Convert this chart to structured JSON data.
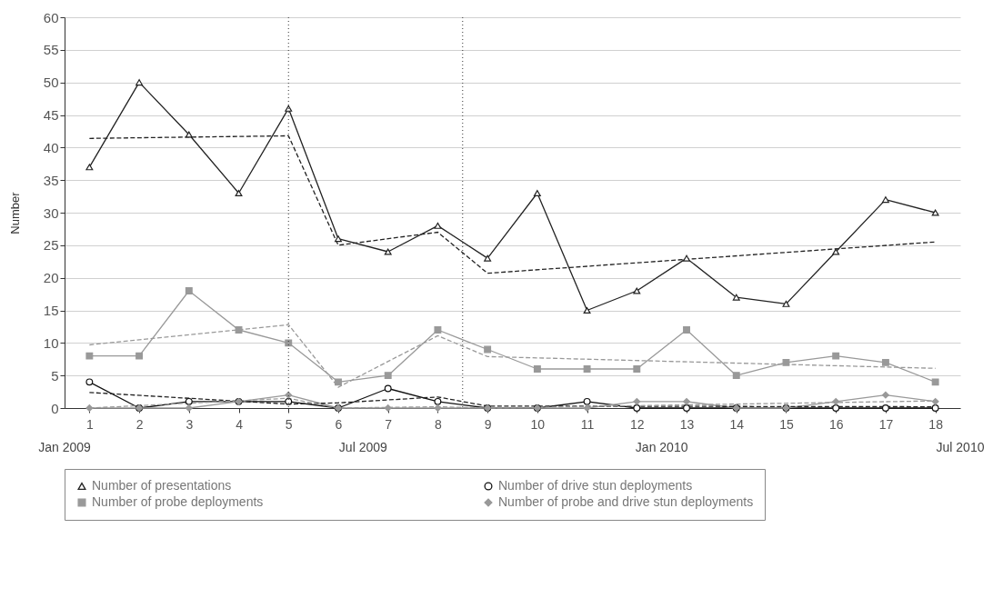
{
  "chart_data": {
    "type": "line",
    "ylabel": "Number",
    "xlim": [
      0.5,
      18.5
    ],
    "xticks": [
      1,
      2,
      3,
      4,
      5,
      6,
      7,
      8,
      9,
      10,
      11,
      12,
      13,
      14,
      15,
      16,
      17,
      18
    ],
    "ylim": [
      0,
      60
    ],
    "yticks": [
      0,
      5,
      10,
      15,
      20,
      25,
      30,
      35,
      40,
      45,
      50,
      55,
      60
    ],
    "grid": "y",
    "legend": "bottom",
    "line_style": "solid",
    "x": [
      1,
      2,
      3,
      4,
      5,
      6,
      7,
      8,
      9,
      10,
      11,
      12,
      13,
      14,
      15,
      16,
      17,
      18
    ],
    "series": [
      {
        "name": "Number of presentations",
        "color": "#222222",
        "marker": "triangle",
        "values": [
          37,
          50,
          42,
          33,
          46,
          26,
          24,
          28,
          23,
          33,
          15,
          18,
          23,
          17,
          16,
          24,
          32,
          30
        ]
      },
      {
        "name": "Number of drive stun deployments",
        "color": "#111111",
        "marker": "circle",
        "values": [
          4,
          0,
          1,
          1,
          1,
          0,
          3,
          1,
          0,
          0,
          1,
          0,
          0,
          0,
          0,
          0,
          0,
          0
        ]
      },
      {
        "name": "Number of probe deployments",
        "color": "#999999",
        "marker": "square",
        "values": [
          8,
          8,
          18,
          12,
          10,
          4,
          5,
          12,
          9,
          6,
          6,
          6,
          12,
          5,
          7,
          8,
          7,
          4
        ]
      },
      {
        "name": "Number of probe and drive stun deployments",
        "color": "#999999",
        "marker": "diamond",
        "values": [
          0,
          0,
          0,
          1,
          2,
          0,
          0,
          0,
          0,
          0,
          0,
          1,
          1,
          0,
          0,
          1,
          2,
          1
        ]
      },
      {
        "type": "line",
        "color": "#222222",
        "line_style": "dashed",
        "marker": "none",
        "x": [
          1,
          5,
          6,
          8,
          9,
          18
        ],
        "values": [
          41.4,
          41.8,
          25,
          27,
          20.7,
          25.5
        ]
      },
      {
        "type": "line",
        "color": "#999999",
        "line_style": "dashed",
        "marker": "none",
        "x": [
          1,
          5,
          6,
          8,
          9,
          18
        ],
        "values": [
          9.7,
          12.8,
          3.2,
          11.1,
          7.9,
          6.1
        ]
      },
      {
        "type": "line",
        "color": "#222222",
        "line_style": "dashed",
        "marker": "none",
        "x": [
          1,
          5,
          6,
          8,
          9,
          18
        ],
        "values": [
          2.4,
          0.6,
          0.8,
          1.7,
          0.3,
          0.2
        ]
      },
      {
        "type": "line",
        "color": "#999999",
        "line_style": "dashed",
        "marker": "none",
        "x": [
          1,
          5,
          6,
          8,
          9,
          18
        ],
        "values": [
          0,
          1.5,
          0,
          0.2,
          0,
          1.1
        ]
      }
    ],
    "ref_lines": [
      {
        "axis": "x",
        "value": 5,
        "color": "#333333",
        "line_style": "dotted"
      },
      {
        "axis": "x",
        "value": 8.5,
        "color": "#333333",
        "line_style": "dotted"
      }
    ],
    "annotations": [
      "Jan 2009",
      "Jul 2009",
      "Jan 2010",
      "Jul 2010"
    ]
  }
}
